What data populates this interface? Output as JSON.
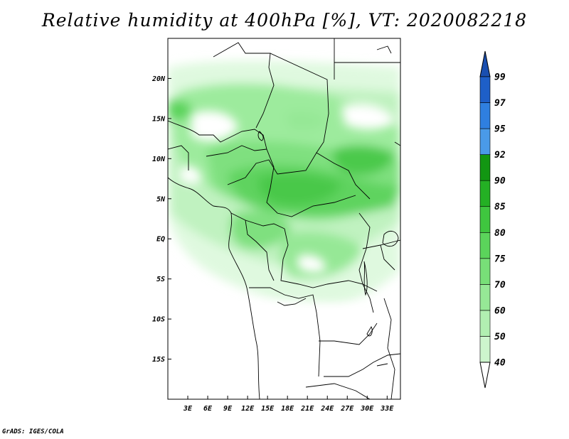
{
  "title": "Relative humidity at 400hPa [%], VT: 2020082218",
  "credit": "GrADS: IGES/COLA",
  "map": {
    "lon_range": [
      0,
      35
    ],
    "lat_range": [
      -20,
      25
    ],
    "lat_ticks": [
      {
        "value": 20,
        "label": "20N"
      },
      {
        "value": 15,
        "label": "15N"
      },
      {
        "value": 10,
        "label": "10N"
      },
      {
        "value": 5,
        "label": "5N"
      },
      {
        "value": 0,
        "label": "EQ"
      },
      {
        "value": -5,
        "label": "5S"
      },
      {
        "value": -10,
        "label": "10S"
      },
      {
        "value": -15,
        "label": "15S"
      }
    ],
    "lon_ticks": [
      {
        "value": 3,
        "label": "3E"
      },
      {
        "value": 6,
        "label": "6E"
      },
      {
        "value": 9,
        "label": "9E"
      },
      {
        "value": 12,
        "label": "12E"
      },
      {
        "value": 15,
        "label": "15E"
      },
      {
        "value": 18,
        "label": "18E"
      },
      {
        "value": 21,
        "label": "21E"
      },
      {
        "value": 24,
        "label": "24E"
      },
      {
        "value": 27,
        "label": "27E"
      },
      {
        "value": 30,
        "label": "30E"
      },
      {
        "value": 33,
        "label": "33E"
      }
    ]
  },
  "colorbar": {
    "levels": [
      {
        "label": "40",
        "color": "#e6fbe6"
      },
      {
        "label": "50",
        "color": "#cdf5cd"
      },
      {
        "label": "60",
        "color": "#b1efb1"
      },
      {
        "label": "70",
        "color": "#96e896"
      },
      {
        "label": "75",
        "color": "#78df78"
      },
      {
        "label": "80",
        "color": "#5bd45b"
      },
      {
        "label": "85",
        "color": "#3fc63f"
      },
      {
        "label": "90",
        "color": "#24b024"
      },
      {
        "label": "92",
        "color": "#129612"
      },
      {
        "label": "95",
        "color": "#4a9ae8"
      },
      {
        "label": "97",
        "color": "#2f7fe0"
      },
      {
        "label": "99",
        "color": "#1e5fc8"
      }
    ],
    "top_color": "#1a4fb0",
    "bottom_color": "#ffffff"
  }
}
